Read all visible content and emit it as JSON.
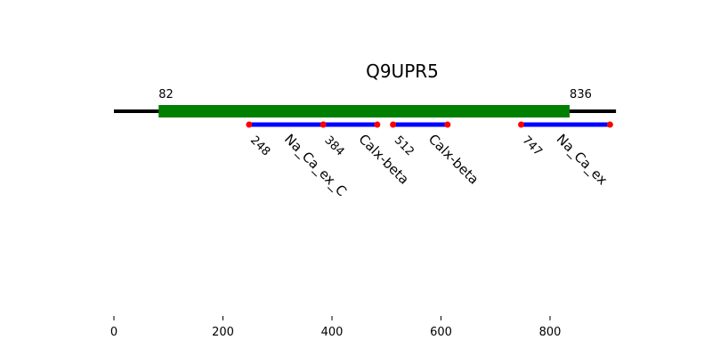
{
  "title": "Q9UPR5",
  "chart_data": {
    "type": "protein-domain-map",
    "title": "Q9UPR5",
    "protein_length": 921,
    "region": {
      "start": 82,
      "end": 836,
      "color": "#008000"
    },
    "region_labels": {
      "start": "82",
      "end": "836"
    },
    "domains": [
      {
        "name": "Na_Ca_ex_C",
        "start": 248,
        "end": 384,
        "start_label": "248"
      },
      {
        "name": "Calx-beta",
        "start": 384,
        "end": 483,
        "start_label": "384"
      },
      {
        "name": "Calx-beta",
        "start": 512,
        "end": 612,
        "start_label": "512"
      },
      {
        "name": "Na_Ca_ex",
        "start": 747,
        "end": 910,
        "start_label": "747"
      }
    ],
    "domain_color": "#0000ff",
    "endpoint_color": "#ff0000",
    "backbone_color": "#000000",
    "xlim": [
      0,
      921
    ],
    "xticks": [
      0,
      200,
      400,
      600,
      800
    ],
    "xtick_labels": [
      "0",
      "200",
      "400",
      "600",
      "800"
    ]
  }
}
